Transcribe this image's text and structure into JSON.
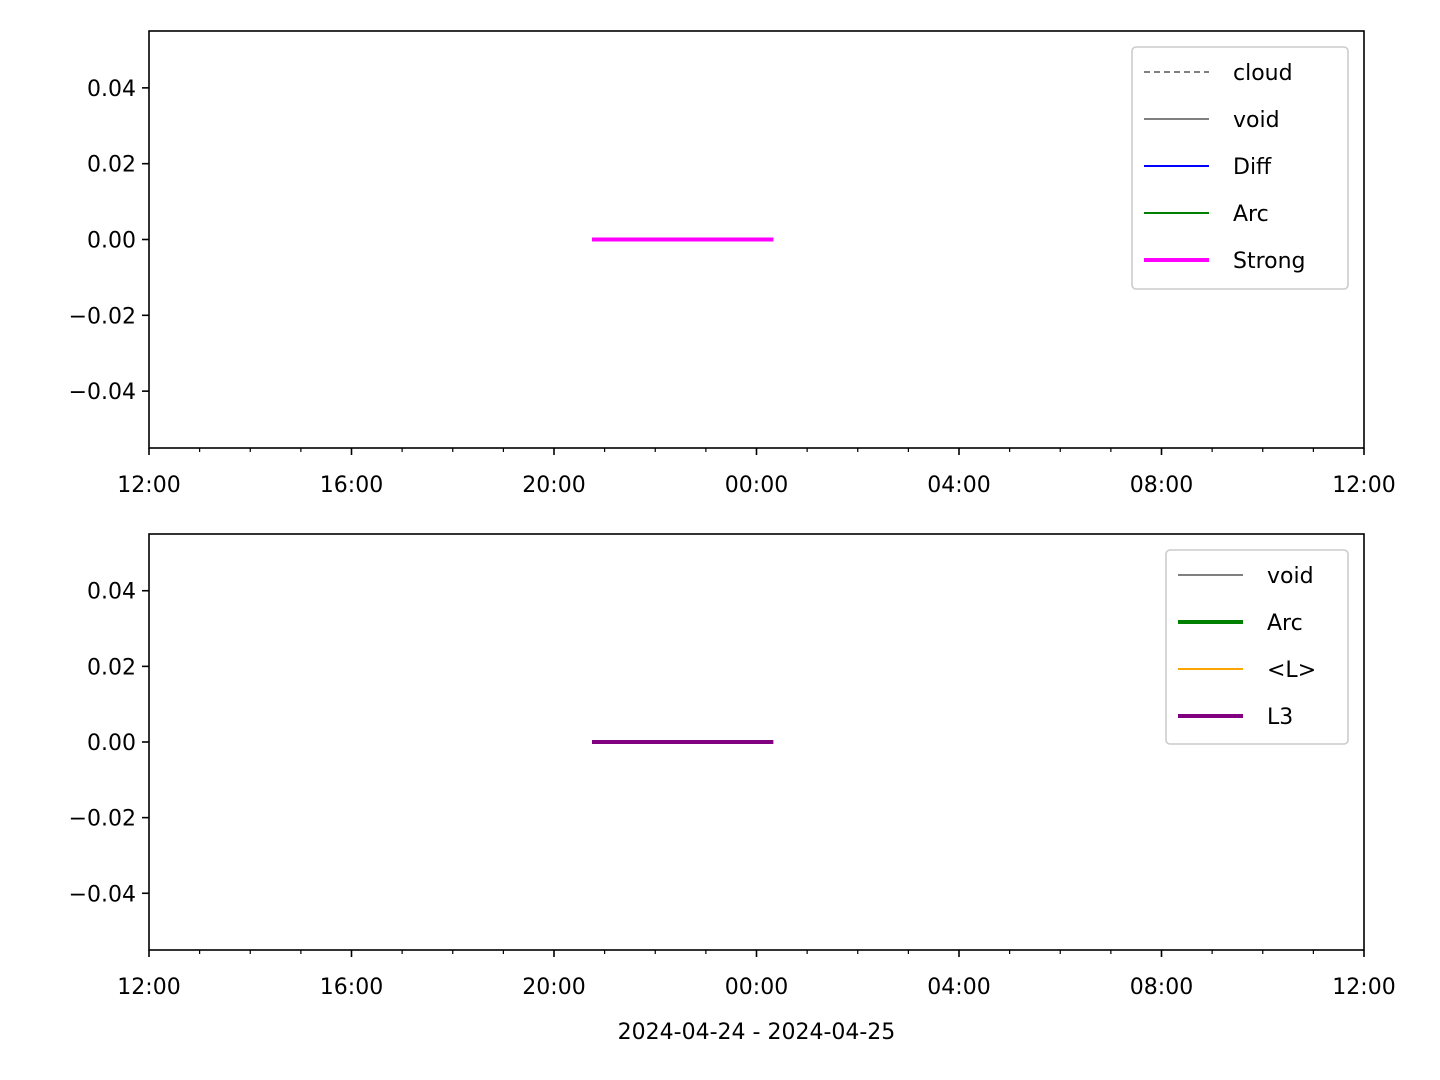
{
  "chart_data": [
    {
      "type": "line",
      "xlim": [
        "2024-04-24 12:00",
        "2024-04-25 12:00"
      ],
      "ylim": [
        -0.055,
        0.055
      ],
      "xticks": [
        "12:00",
        "16:00",
        "20:00",
        "00:00",
        "04:00",
        "08:00",
        "12:00"
      ],
      "yticks": [
        "0.04",
        "0.02",
        "0.00",
        "−0.02",
        "−0.04"
      ],
      "xlabel": "",
      "legend_position": "top-right",
      "series": [
        {
          "name": "cloud",
          "color": "#808080",
          "style": "dashed",
          "x": [],
          "y": []
        },
        {
          "name": "void",
          "color": "#808080",
          "style": "solid",
          "x": [],
          "y": []
        },
        {
          "name": "Diff",
          "color": "#0000ff",
          "style": "solid",
          "x": [],
          "y": []
        },
        {
          "name": "Arc",
          "color": "#008000",
          "style": "solid",
          "x": [],
          "y": []
        },
        {
          "name": "Strong",
          "color": "#ff00ff",
          "style": "solid-thick",
          "x": [
            "2024-04-24 20:45",
            "2024-04-25 00:20"
          ],
          "y": [
            0,
            0
          ]
        }
      ]
    },
    {
      "type": "line",
      "xlim": [
        "2024-04-24 12:00",
        "2024-04-25 12:00"
      ],
      "ylim": [
        -0.055,
        0.055
      ],
      "xticks": [
        "12:00",
        "16:00",
        "20:00",
        "00:00",
        "04:00",
        "08:00",
        "12:00"
      ],
      "yticks": [
        "0.04",
        "0.02",
        "0.00",
        "−0.02",
        "−0.04"
      ],
      "xlabel": "2024-04-24 - 2024-04-25",
      "legend_position": "top-right",
      "series": [
        {
          "name": "void",
          "color": "#808080",
          "style": "solid",
          "x": [],
          "y": []
        },
        {
          "name": "Arc",
          "color": "#008000",
          "style": "solid-thick",
          "x": [],
          "y": []
        },
        {
          "name": "<L>",
          "color": "#ffa500",
          "style": "solid",
          "x": [],
          "y": []
        },
        {
          "name": "L3",
          "color": "#800080",
          "style": "solid-thick",
          "x": [
            "2024-04-24 20:45",
            "2024-04-25 00:20"
          ],
          "y": [
            0,
            0
          ]
        }
      ]
    }
  ]
}
